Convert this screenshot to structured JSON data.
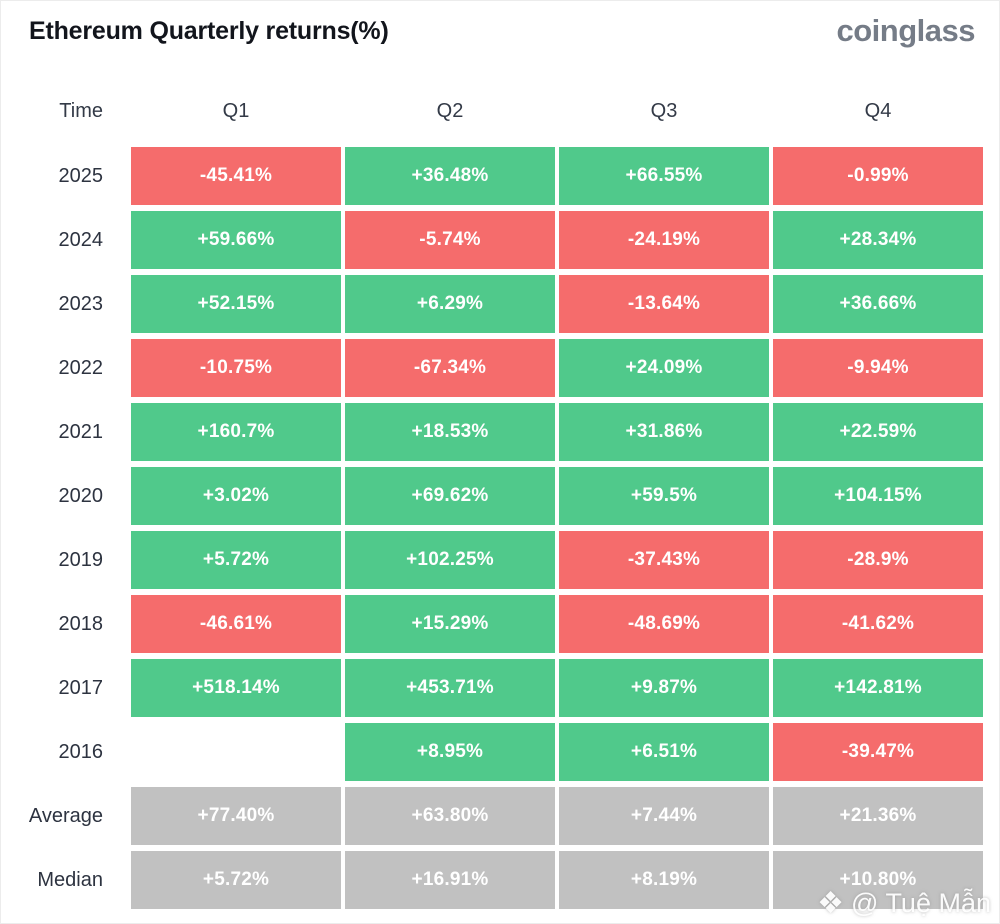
{
  "header": {
    "title": "Ethereum Quarterly returns(%)",
    "brand": "coinglass"
  },
  "colors": {
    "up": "#50C98B",
    "down": "#F56C6C",
    "neutral": "#C1C1C1",
    "label_text": "#2D3340",
    "title_text": "#12151C",
    "brand_text": "#757C87",
    "cell_text": "#FFFFFF"
  },
  "table": {
    "headers": [
      "Time",
      "Q1",
      "Q2",
      "Q3",
      "Q4"
    ],
    "rows": [
      {
        "label": "2025",
        "cells": [
          {
            "text": "-45.41%",
            "state": "down"
          },
          {
            "text": "+36.48%",
            "state": "up"
          },
          {
            "text": "+66.55%",
            "state": "up"
          },
          {
            "text": "-0.99%",
            "state": "down"
          }
        ]
      },
      {
        "label": "2024",
        "cells": [
          {
            "text": "+59.66%",
            "state": "up"
          },
          {
            "text": "-5.74%",
            "state": "down"
          },
          {
            "text": "-24.19%",
            "state": "down"
          },
          {
            "text": "+28.34%",
            "state": "up"
          }
        ]
      },
      {
        "label": "2023",
        "cells": [
          {
            "text": "+52.15%",
            "state": "up"
          },
          {
            "text": "+6.29%",
            "state": "up"
          },
          {
            "text": "-13.64%",
            "state": "down"
          },
          {
            "text": "+36.66%",
            "state": "up"
          }
        ]
      },
      {
        "label": "2022",
        "cells": [
          {
            "text": "-10.75%",
            "state": "down"
          },
          {
            "text": "-67.34%",
            "state": "down"
          },
          {
            "text": "+24.09%",
            "state": "up"
          },
          {
            "text": "-9.94%",
            "state": "down"
          }
        ]
      },
      {
        "label": "2021",
        "cells": [
          {
            "text": "+160.7%",
            "state": "up"
          },
          {
            "text": "+18.53%",
            "state": "up"
          },
          {
            "text": "+31.86%",
            "state": "up"
          },
          {
            "text": "+22.59%",
            "state": "up"
          }
        ]
      },
      {
        "label": "2020",
        "cells": [
          {
            "text": "+3.02%",
            "state": "up"
          },
          {
            "text": "+69.62%",
            "state": "up"
          },
          {
            "text": "+59.5%",
            "state": "up"
          },
          {
            "text": "+104.15%",
            "state": "up"
          }
        ]
      },
      {
        "label": "2019",
        "cells": [
          {
            "text": "+5.72%",
            "state": "up"
          },
          {
            "text": "+102.25%",
            "state": "up"
          },
          {
            "text": "-37.43%",
            "state": "down"
          },
          {
            "text": "-28.9%",
            "state": "down"
          }
        ]
      },
      {
        "label": "2018",
        "cells": [
          {
            "text": "-46.61%",
            "state": "down"
          },
          {
            "text": "+15.29%",
            "state": "up"
          },
          {
            "text": "-48.69%",
            "state": "down"
          },
          {
            "text": "-41.62%",
            "state": "down"
          }
        ]
      },
      {
        "label": "2017",
        "cells": [
          {
            "text": "+518.14%",
            "state": "up"
          },
          {
            "text": "+453.71%",
            "state": "up"
          },
          {
            "text": "+9.87%",
            "state": "up"
          },
          {
            "text": "+142.81%",
            "state": "up"
          }
        ]
      },
      {
        "label": "2016",
        "cells": [
          {
            "text": "",
            "state": "empty"
          },
          {
            "text": "+8.95%",
            "state": "up"
          },
          {
            "text": "+6.51%",
            "state": "up"
          },
          {
            "text": "-39.47%",
            "state": "down"
          }
        ]
      },
      {
        "label": "Average",
        "cells": [
          {
            "text": "+77.40%",
            "state": "neutral"
          },
          {
            "text": "+63.80%",
            "state": "neutral"
          },
          {
            "text": "+7.44%",
            "state": "neutral"
          },
          {
            "text": "+21.36%",
            "state": "neutral"
          }
        ]
      },
      {
        "label": "Median",
        "cells": [
          {
            "text": "+5.72%",
            "state": "neutral"
          },
          {
            "text": "+16.91%",
            "state": "neutral"
          },
          {
            "text": "+8.19%",
            "state": "neutral"
          },
          {
            "text": "+10.80%",
            "state": "neutral"
          }
        ]
      }
    ]
  },
  "watermark": {
    "icon": "binance-diamond-icon",
    "icon_glyph": "❖",
    "text": "@ Tuệ Mẫn"
  },
  "chart_data": {
    "type": "table",
    "title": "Ethereum Quarterly returns(%)",
    "columns": [
      "Q1",
      "Q2",
      "Q3",
      "Q4"
    ],
    "rows": [
      "2025",
      "2024",
      "2023",
      "2022",
      "2021",
      "2020",
      "2019",
      "2018",
      "2017",
      "2016",
      "Average",
      "Median"
    ],
    "values": [
      [
        -45.41,
        36.48,
        66.55,
        -0.99
      ],
      [
        59.66,
        -5.74,
        -24.19,
        28.34
      ],
      [
        52.15,
        6.29,
        -13.64,
        36.66
      ],
      [
        -10.75,
        -67.34,
        24.09,
        -9.94
      ],
      [
        160.7,
        18.53,
        31.86,
        22.59
      ],
      [
        3.02,
        69.62,
        59.5,
        104.15
      ],
      [
        5.72,
        102.25,
        -37.43,
        -28.9
      ],
      [
        -46.61,
        15.29,
        -48.69,
        -41.62
      ],
      [
        518.14,
        453.71,
        9.87,
        142.81
      ],
      [
        null,
        8.95,
        6.51,
        -39.47
      ],
      [
        77.4,
        63.8,
        7.44,
        21.36
      ],
      [
        5.72,
        16.91,
        8.19,
        10.8
      ]
    ],
    "unit": "%",
    "color_rule": "green = positive quarter, red = negative quarter, gray = Average/Median summary rows, blank = no data (2016 Q1)",
    "legend_position": "none",
    "grid": false
  }
}
